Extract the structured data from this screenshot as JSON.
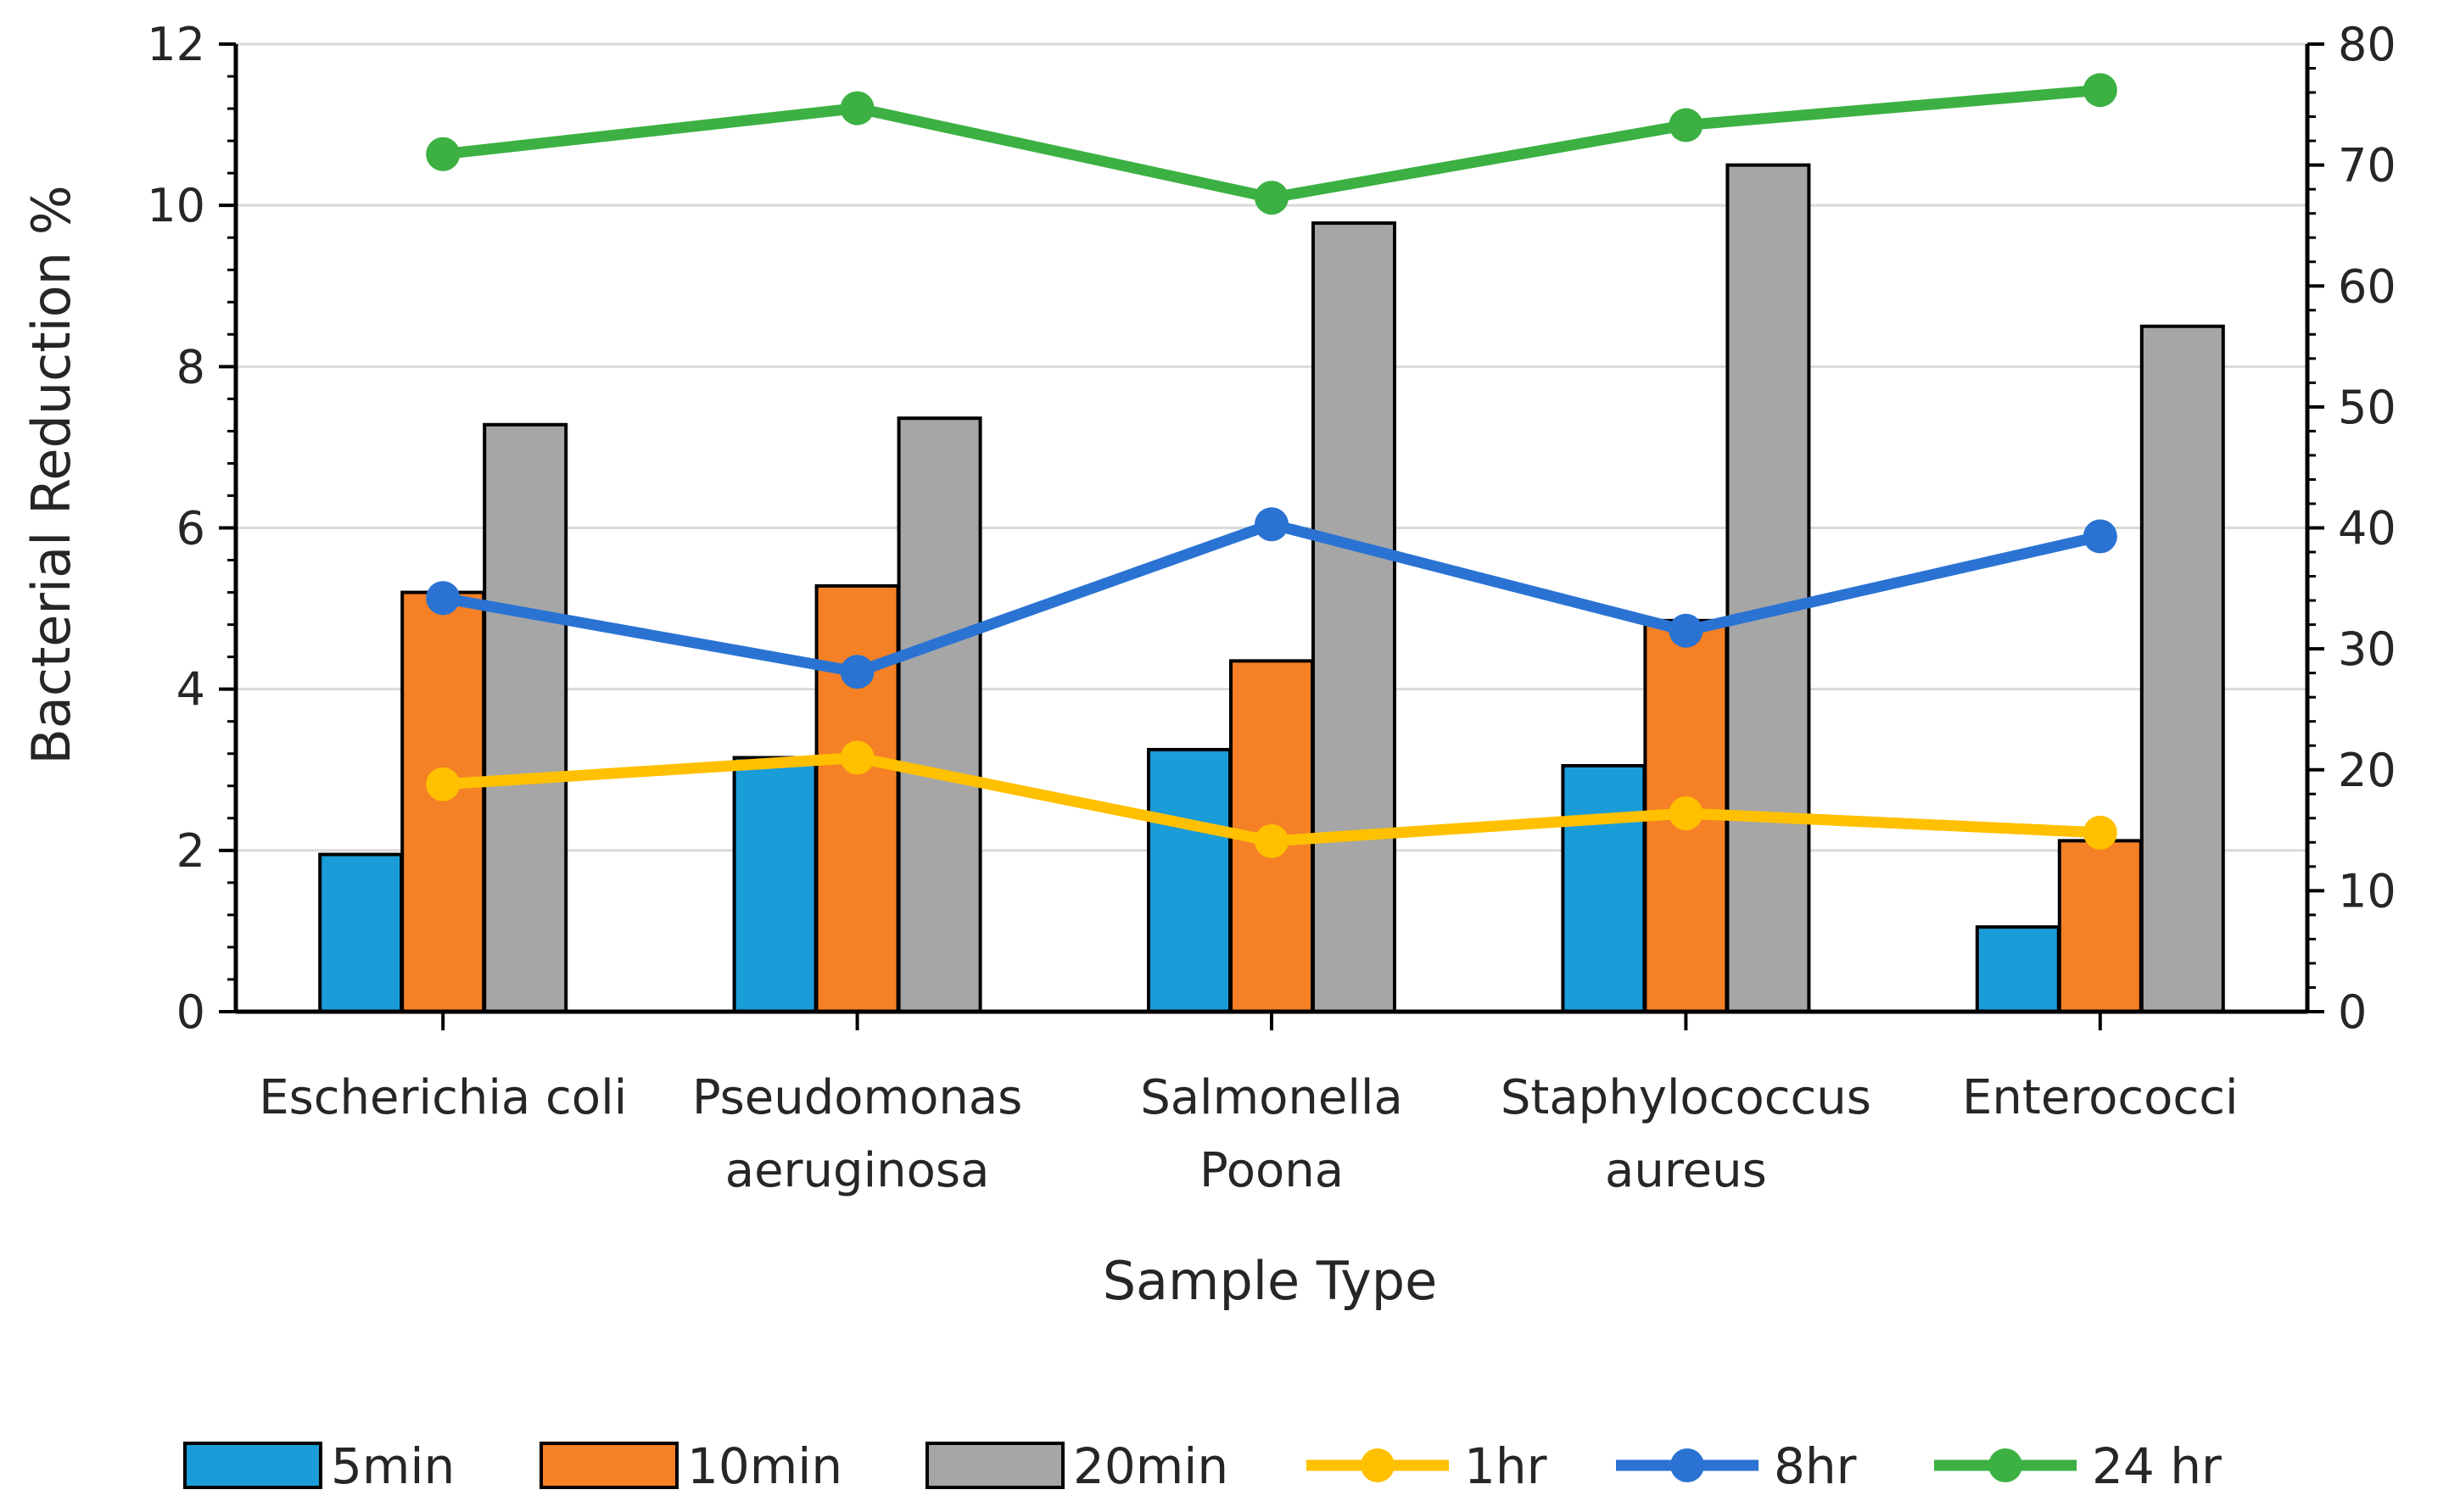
{
  "chart_data": {
    "type": "bar",
    "title": "",
    "xlabel": "Sample Type",
    "ylabel": "Bacterial Reduction %",
    "ylim": [
      0,
      12
    ],
    "y2lim": [
      0,
      80
    ],
    "y_ticks": [
      "0",
      "2",
      "4",
      "6",
      "8",
      "10",
      "12"
    ],
    "y2_ticks": [
      "0",
      "10",
      "20",
      "30",
      "40",
      "50",
      "60",
      "70",
      "80"
    ],
    "categories": [
      [
        "Escherichia coli"
      ],
      [
        "Pseudomonas",
        "aeruginosa"
      ],
      [
        "Salmonella",
        "Poona"
      ],
      [
        "Staphylococcus",
        "aureus"
      ],
      [
        "Enterococci"
      ]
    ],
    "bar_series": [
      {
        "name": "5min",
        "color": "#1a9cd8",
        "values": [
          1.95,
          3.15,
          3.25,
          3.05,
          1.05
        ]
      },
      {
        "name": "10min",
        "color": "#f58025",
        "values": [
          5.2,
          5.28,
          4.35,
          4.85,
          2.12
        ]
      },
      {
        "name": "20min",
        "color": "#a6a6a6",
        "values": [
          7.28,
          7.36,
          9.78,
          10.5,
          8.5
        ]
      }
    ],
    "line_series": [
      {
        "name": "1hr",
        "color": "#ffc000",
        "axis": "secondary",
        "values": [
          18.8,
          21.0,
          14.1,
          16.4,
          14.8
        ]
      },
      {
        "name": "8hr",
        "color": "#2a73d3",
        "axis": "secondary",
        "values": [
          34.2,
          28.1,
          40.3,
          31.5,
          39.3
        ]
      },
      {
        "name": "24 hr",
        "color": "#3cb043",
        "axis": "secondary",
        "values": [
          70.9,
          74.7,
          67.3,
          73.3,
          76.2
        ]
      }
    ],
    "legend": {
      "position": "bottom",
      "entries": [
        "5min",
        "10min",
        "20min",
        "1hr",
        "8hr",
        "24 hr"
      ]
    },
    "grid": true
  }
}
